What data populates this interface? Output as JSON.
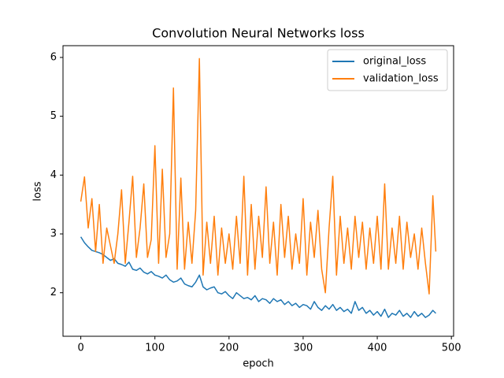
{
  "chart_data": {
    "type": "line",
    "title": "Convolution Neural Networks loss",
    "x_label": "epoch",
    "y_label": "loss",
    "x": [
      0,
      5,
      10,
      15,
      20,
      25,
      30,
      35,
      40,
      45,
      50,
      55,
      60,
      65,
      70,
      75,
      80,
      85,
      90,
      95,
      100,
      105,
      110,
      115,
      120,
      125,
      130,
      135,
      140,
      145,
      150,
      155,
      160,
      165,
      170,
      175,
      180,
      185,
      190,
      195,
      200,
      205,
      210,
      215,
      220,
      225,
      230,
      235,
      240,
      245,
      250,
      255,
      260,
      265,
      270,
      275,
      280,
      285,
      290,
      295,
      300,
      305,
      310,
      315,
      320,
      325,
      330,
      335,
      340,
      345,
      350,
      355,
      360,
      365,
      370,
      375,
      380,
      385,
      390,
      395,
      400,
      405,
      410,
      415,
      420,
      425,
      430,
      435,
      440,
      445,
      450,
      455,
      460,
      465,
      470,
      475,
      479
    ],
    "series": [
      {
        "name": "original_loss",
        "color": "#1f77b4",
        "values": [
          2.95,
          2.85,
          2.78,
          2.72,
          2.7,
          2.68,
          2.65,
          2.6,
          2.55,
          2.58,
          2.5,
          2.48,
          2.45,
          2.52,
          2.4,
          2.38,
          2.42,
          2.35,
          2.32,
          2.36,
          2.3,
          2.28,
          2.25,
          2.3,
          2.22,
          2.18,
          2.2,
          2.25,
          2.15,
          2.12,
          2.1,
          2.18,
          2.3,
          2.1,
          2.05,
          2.08,
          2.1,
          2.0,
          1.98,
          2.02,
          1.95,
          1.9,
          2.0,
          1.95,
          1.9,
          1.92,
          1.88,
          1.95,
          1.85,
          1.9,
          1.88,
          1.82,
          1.9,
          1.85,
          1.88,
          1.8,
          1.85,
          1.78,
          1.82,
          1.75,
          1.8,
          1.78,
          1.72,
          1.85,
          1.75,
          1.7,
          1.78,
          1.72,
          1.8,
          1.7,
          1.75,
          1.68,
          1.72,
          1.65,
          1.85,
          1.7,
          1.75,
          1.65,
          1.7,
          1.62,
          1.68,
          1.6,
          1.72,
          1.58,
          1.65,
          1.62,
          1.7,
          1.6,
          1.65,
          1.58,
          1.68,
          1.6,
          1.65,
          1.58,
          1.62,
          1.7,
          1.65
        ]
      },
      {
        "name": "validation_loss",
        "color": "#ff7f0e",
        "values": [
          3.55,
          3.97,
          3.1,
          3.6,
          2.7,
          3.5,
          2.5,
          3.1,
          2.8,
          2.5,
          3.0,
          3.75,
          2.5,
          3.2,
          3.98,
          2.6,
          3.1,
          3.85,
          2.6,
          2.9,
          4.5,
          2.5,
          4.1,
          2.6,
          3.0,
          5.48,
          2.4,
          3.95,
          2.4,
          3.2,
          2.5,
          3.4,
          5.98,
          2.3,
          3.2,
          2.5,
          3.3,
          2.3,
          3.1,
          2.5,
          3.0,
          2.4,
          3.3,
          2.5,
          3.98,
          2.3,
          3.5,
          2.4,
          3.3,
          2.6,
          3.8,
          2.5,
          3.2,
          2.3,
          3.5,
          2.6,
          3.3,
          2.4,
          3.0,
          2.5,
          3.6,
          2.3,
          3.2,
          2.6,
          3.4,
          2.4,
          2.0,
          3.1,
          3.98,
          2.3,
          3.3,
          2.5,
          3.1,
          2.4,
          3.3,
          2.6,
          3.2,
          2.4,
          3.1,
          2.5,
          3.3,
          2.4,
          3.85,
          2.4,
          3.1,
          2.5,
          3.3,
          2.4,
          3.2,
          2.6,
          3.0,
          2.4,
          3.1,
          2.5,
          1.98,
          3.65,
          2.7
        ]
      }
    ],
    "xlim": [
      -24,
      503
    ],
    "ylim": [
      1.26,
      6.2
    ],
    "xticks": [
      0,
      100,
      200,
      300,
      400,
      500
    ],
    "yticks": [
      2,
      3,
      4,
      5,
      6
    ],
    "legend": "upper right"
  }
}
